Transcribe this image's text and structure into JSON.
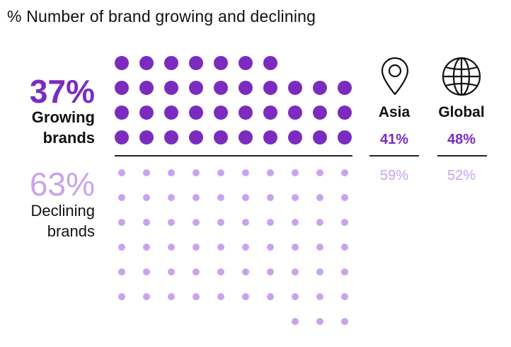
{
  "title": "% Number of brand growing and declining",
  "growing": {
    "percent": "37%",
    "label_line1": "Growing",
    "label_line2": "brands"
  },
  "declining": {
    "percent": "63%",
    "label_line1": "Declining",
    "label_line2": "brands"
  },
  "regions": [
    {
      "name": "Asia",
      "growing": "41%",
      "declining": "59%",
      "icon": "location-pin-icon"
    },
    {
      "name": "Global",
      "growing": "48%",
      "declining": "52%",
      "icon": "globe-icon"
    }
  ],
  "colors": {
    "growing": "#7b2cbf",
    "declining": "#c9a3ec",
    "text": "#111111",
    "divider": "#222222"
  },
  "chart_data": {
    "type": "dot-matrix",
    "total_dots": 100,
    "columns": 10,
    "categories": [
      "Growing brands",
      "Declining brands"
    ],
    "values": [
      37,
      63
    ],
    "units": "%"
  }
}
